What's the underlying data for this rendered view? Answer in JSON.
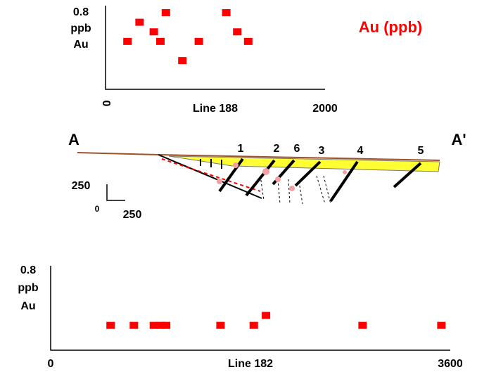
{
  "chart_data": [
    {
      "type": "scatter",
      "title": "Au (ppb)",
      "xlabel": "Line 188",
      "ylabel": [
        "ppb",
        "Au"
      ],
      "color": "#ff0000",
      "x": [
        200,
        310,
        440,
        500,
        550,
        700,
        850,
        1100,
        1200,
        1300
      ],
      "values": [
        0.5,
        0.7,
        0.6,
        0.5,
        0.8,
        0.3,
        0.5,
        0.8,
        0.6,
        0.5
      ],
      "xlim": [
        0,
        2000
      ],
      "xticks": [
        0,
        2000
      ],
      "ylim": [
        0,
        0.8
      ],
      "yticks": [
        0.8
      ]
    },
    {
      "type": "scatter",
      "xlabel": "Line 182",
      "ylabel": [
        "ppb",
        "Au"
      ],
      "color": "#ff0000",
      "x": [
        540,
        750,
        930,
        990,
        1040,
        1530,
        1830,
        1940,
        2810,
        3520
      ],
      "values": [
        0.25,
        0.25,
        0.25,
        0.25,
        0.25,
        0.25,
        0.25,
        0.35,
        0.25,
        0.25
      ],
      "xlim": [
        0,
        3600
      ],
      "xticks": [
        0,
        3600
      ],
      "ylim": [
        0,
        0.8
      ],
      "yticks": [
        0.8
      ]
    }
  ],
  "section": {
    "start": "A",
    "end": "A'",
    "veins": [
      "1",
      "2",
      "6",
      "3",
      "4",
      "5"
    ],
    "scale": [
      "250",
      "0",
      "250"
    ]
  }
}
